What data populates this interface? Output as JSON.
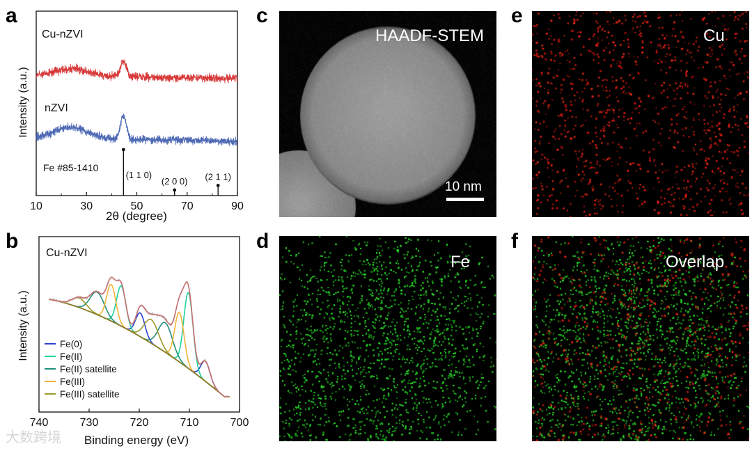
{
  "panels": {
    "a": {
      "letter": "a"
    },
    "b": {
      "letter": "b"
    },
    "c": {
      "letter": "c",
      "label": "HAADF-STEM",
      "scalebar": "10 nm"
    },
    "d": {
      "letter": "d",
      "label": "Fe"
    },
    "e": {
      "letter": "e",
      "label": "Cu"
    },
    "f": {
      "letter": "f",
      "label": "Overlap"
    }
  },
  "colors": {
    "cu_nzvi": "#d01818",
    "nzvi": "#3050a8",
    "fe_map": "#2ecc2e",
    "cu_map": "#e02020"
  },
  "watermark": "大数跨境",
  "chart_data": [
    {
      "type": "line",
      "panel": "a",
      "xlabel": "2θ (degree)",
      "ylabel": "Intensity (a.u.)",
      "xlim": [
        10,
        90
      ],
      "xticks": [
        10,
        30,
        50,
        70,
        90
      ],
      "series": [
        {
          "name": "Cu-nZVI",
          "peak_x": 44.7
        },
        {
          "name": "nZVI",
          "peak_x": 44.7
        }
      ],
      "reference": {
        "name": "Fe #85-1410",
        "peaks": [
          {
            "x": 44.7,
            "label": "(1 1 0)",
            "rel_height": 1.0
          },
          {
            "x": 65.0,
            "label": "(2 0 0)",
            "rel_height": 0.12
          },
          {
            "x": 82.3,
            "label": "(2 1 1)",
            "rel_height": 0.22
          }
        ]
      }
    },
    {
      "type": "line",
      "panel": "b",
      "title": "Cu-nZVI",
      "xlabel": "Binding energy (eV)",
      "ylabel": "Intensity (a.u.)",
      "xlim": [
        740,
        700
      ],
      "xticks": [
        740,
        730,
        720,
        710,
        700
      ],
      "legend": [
        "Fe(0)",
        "Fe(II)",
        "Fe(II) satellite",
        "Fe(III)",
        "Fe(III) satellite"
      ],
      "legend_colors": [
        "#2b3fcf",
        "#1fd39b",
        "#1e8f7a",
        "#f2b43a",
        "#9a9a2a"
      ],
      "components": [
        {
          "name": "Fe(0)",
          "center": 706.8,
          "height": 0.17
        },
        {
          "name": "Fe(0)",
          "center": 719.8,
          "height": 0.2
        },
        {
          "name": "Fe(II)",
          "center": 710.2,
          "height": 0.64
        },
        {
          "name": "Fe(II)",
          "center": 723.6,
          "height": 0.34
        },
        {
          "name": "Fe(II) satellite",
          "center": 714.8,
          "height": 0.25
        },
        {
          "name": "Fe(II) satellite",
          "center": 728.4,
          "height": 0.19
        },
        {
          "name": "Fe(III)",
          "center": 712.0,
          "height": 0.42
        },
        {
          "name": "Fe(III)",
          "center": 725.6,
          "height": 0.31
        },
        {
          "name": "Fe(III) satellite",
          "center": 717.6,
          "height": 0.2
        },
        {
          "name": "Fe(III) satellite",
          "center": 732.0,
          "height": 0.08
        }
      ]
    }
  ]
}
